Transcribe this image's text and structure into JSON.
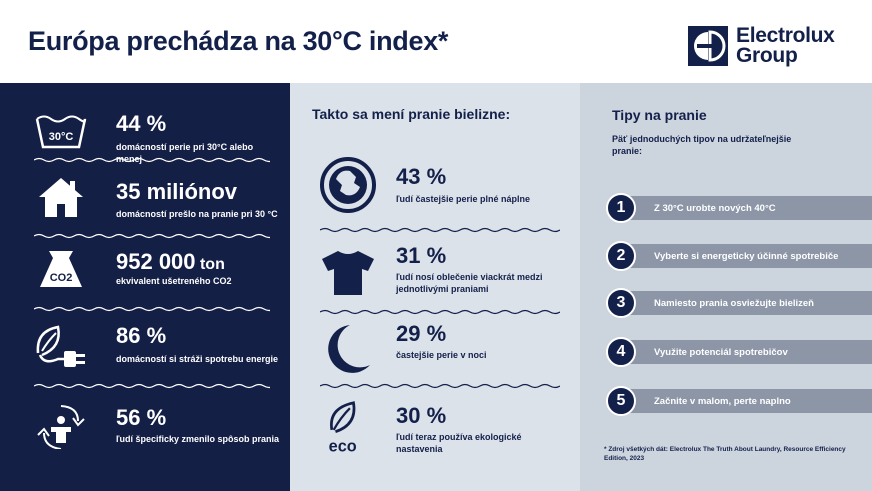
{
  "header": {
    "title": "Európa prechádza na 30°C index*",
    "logo_line1": "Electrolux",
    "logo_line2": "Group",
    "logo_icon": "electrolux-logo-icon"
  },
  "left": {
    "stats": [
      {
        "icon": "wash-30-icon",
        "icon_text": "30°C",
        "big": "44 %",
        "unit": "",
        "small": "domácností perie pri 30°C alebo menej"
      },
      {
        "icon": "house-icon",
        "big": "35 miliónov",
        "unit": "",
        "small": "domácností prešlo na pranie pri 30 °C"
      },
      {
        "icon": "co2-icon",
        "icon_text": "CO2",
        "big": "952 000",
        "unit": " ton",
        "small": "ekvivalent ušetreného CO2"
      },
      {
        "icon": "leaf-plug-icon",
        "big": "86 %",
        "unit": "",
        "small": "domácností si stráži spotrebu energie"
      },
      {
        "icon": "person-cycle-icon",
        "big": "56 %",
        "unit": "",
        "small": "ľudí špecificky zmenilo spôsob prania"
      }
    ]
  },
  "middle": {
    "heading": "Takto sa mení pranie bielizne:",
    "stats": [
      {
        "icon": "washing-drum-icon",
        "big": "43 %",
        "small": "ľudí častejšie perie plné náplne"
      },
      {
        "icon": "tshirt-icon",
        "big": "31 %",
        "small": "ľudí nosí oblečenie viackrát medzi jednotlivými praniami"
      },
      {
        "icon": "moon-icon",
        "big": "29 %",
        "small": "častejšie perie v noci"
      },
      {
        "icon": "eco-leaf-icon",
        "icon_text": "eco",
        "big": "30 %",
        "small": "ľudí teraz používa ekologické nastavenia"
      }
    ]
  },
  "right": {
    "title": "Tipy na pranie",
    "subtitle": "Päť jednoduchých tipov na udržateľnejšie pranie:",
    "tips": [
      {
        "num": "1",
        "label": "Z 30°C urobte nových 40°C"
      },
      {
        "num": "2",
        "label": "Vyberte si energeticky účinné spotrebiče"
      },
      {
        "num": "3",
        "label": "Namiesto prania osviežujte bielizeň"
      },
      {
        "num": "4",
        "label": "Využite potenciál spotrebičov"
      },
      {
        "num": "5",
        "label": "Začnite v malom, perte naplno"
      }
    ],
    "footnote": "* Zdroj všetkých dát: Electrolux The Truth About Laundry, Resource Efficiency Edition, 2023"
  },
  "colors": {
    "navy": "#141f46",
    "middle_bg": "#dce2ea",
    "right_bg": "#ccd4de",
    "tip_bar": "#8c96a7"
  }
}
